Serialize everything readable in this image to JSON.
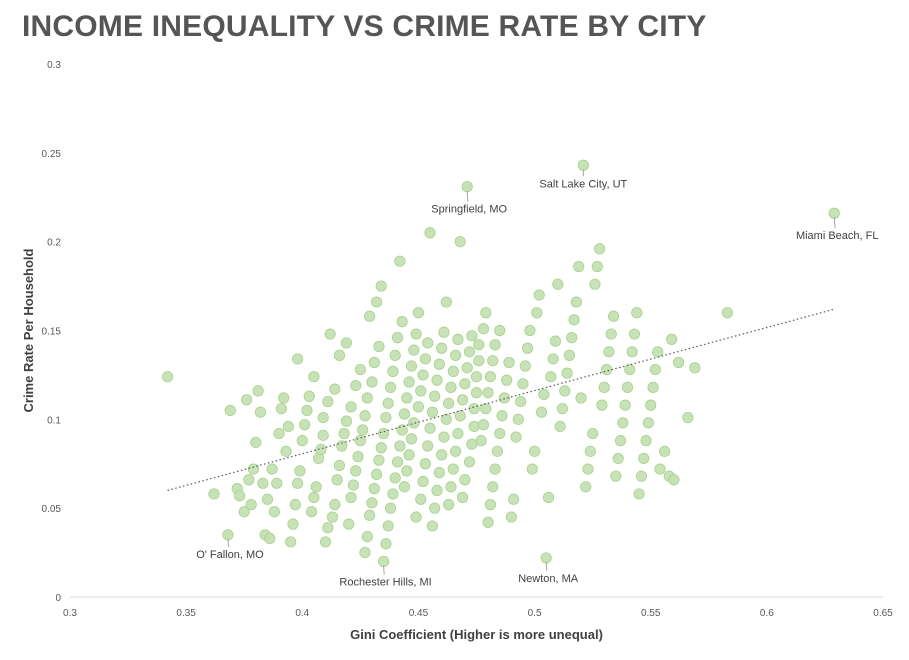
{
  "chart_data": {
    "type": "scatter",
    "title": "INCOME INEQUALITY VS CRIME RATE BY CITY",
    "xlabel": "Gini Coefficient  (Higher is more unequal)",
    "ylabel": "Crime Rate Per Household",
    "xlim": [
      0.3,
      0.65
    ],
    "ylim": [
      0,
      0.3
    ],
    "xticks": [
      "0.3",
      "0.35",
      "0.4",
      "0.45",
      "0.5",
      "0.55",
      "0.6",
      "0.65"
    ],
    "yticks": [
      "0",
      "0.05",
      "0.1",
      "0.15",
      "0.2",
      "0.25",
      "0.3"
    ],
    "grid": false,
    "legend": "none",
    "point_color": "#c5e0b3",
    "point_edge_color": "#a9d18e",
    "trendline": {
      "style": "dotted",
      "color": "#595959",
      "x": [
        0.342,
        0.629
      ],
      "y": [
        0.06,
        0.162
      ]
    },
    "annotations": [
      {
        "text": "Salt Lake City, UT",
        "x": 0.521,
        "y": 0.243
      },
      {
        "text": "Springfield, MO",
        "x": 0.471,
        "y": 0.231
      },
      {
        "text": "Miami Beach, FL",
        "x": 0.629,
        "y": 0.216
      },
      {
        "text": "O' Fallon, MO",
        "x": 0.368,
        "y": 0.035
      },
      {
        "text": "Rochester Hills, MI",
        "x": 0.435,
        "y": 0.02
      },
      {
        "text": "Newton, MA",
        "x": 0.505,
        "y": 0.022
      }
    ],
    "points": [
      [
        0.342,
        0.124
      ],
      [
        0.362,
        0.058
      ],
      [
        0.368,
        0.035
      ],
      [
        0.369,
        0.105
      ],
      [
        0.372,
        0.061
      ],
      [
        0.373,
        0.057
      ],
      [
        0.375,
        0.048
      ],
      [
        0.376,
        0.111
      ],
      [
        0.377,
        0.066
      ],
      [
        0.378,
        0.052
      ],
      [
        0.379,
        0.072
      ],
      [
        0.38,
        0.087
      ],
      [
        0.381,
        0.116
      ],
      [
        0.382,
        0.104
      ],
      [
        0.383,
        0.064
      ],
      [
        0.384,
        0.035
      ],
      [
        0.385,
        0.055
      ],
      [
        0.386,
        0.033
      ],
      [
        0.387,
        0.072
      ],
      [
        0.388,
        0.048
      ],
      [
        0.389,
        0.064
      ],
      [
        0.39,
        0.092
      ],
      [
        0.391,
        0.106
      ],
      [
        0.392,
        0.112
      ],
      [
        0.393,
        0.082
      ],
      [
        0.394,
        0.096
      ],
      [
        0.395,
        0.031
      ],
      [
        0.396,
        0.041
      ],
      [
        0.397,
        0.052
      ],
      [
        0.398,
        0.064
      ],
      [
        0.398,
        0.134
      ],
      [
        0.399,
        0.071
      ],
      [
        0.4,
        0.088
      ],
      [
        0.401,
        0.097
      ],
      [
        0.402,
        0.105
      ],
      [
        0.403,
        0.113
      ],
      [
        0.404,
        0.048
      ],
      [
        0.405,
        0.056
      ],
      [
        0.405,
        0.124
      ],
      [
        0.406,
        0.062
      ],
      [
        0.407,
        0.078
      ],
      [
        0.408,
        0.083
      ],
      [
        0.409,
        0.091
      ],
      [
        0.409,
        0.101
      ],
      [
        0.41,
        0.031
      ],
      [
        0.411,
        0.039
      ],
      [
        0.411,
        0.11
      ],
      [
        0.412,
        0.148
      ],
      [
        0.413,
        0.045
      ],
      [
        0.414,
        0.052
      ],
      [
        0.414,
        0.117
      ],
      [
        0.415,
        0.066
      ],
      [
        0.416,
        0.074
      ],
      [
        0.416,
        0.136
      ],
      [
        0.417,
        0.085
      ],
      [
        0.418,
        0.092
      ],
      [
        0.419,
        0.099
      ],
      [
        0.419,
        0.143
      ],
      [
        0.42,
        0.041
      ],
      [
        0.421,
        0.056
      ],
      [
        0.421,
        0.107
      ],
      [
        0.422,
        0.063
      ],
      [
        0.423,
        0.071
      ],
      [
        0.423,
        0.119
      ],
      [
        0.424,
        0.079
      ],
      [
        0.425,
        0.088
      ],
      [
        0.425,
        0.128
      ],
      [
        0.426,
        0.094
      ],
      [
        0.427,
        0.025
      ],
      [
        0.427,
        0.102
      ],
      [
        0.428,
        0.034
      ],
      [
        0.428,
        0.112
      ],
      [
        0.429,
        0.046
      ],
      [
        0.429,
        0.158
      ],
      [
        0.43,
        0.053
      ],
      [
        0.43,
        0.121
      ],
      [
        0.431,
        0.061
      ],
      [
        0.431,
        0.132
      ],
      [
        0.432,
        0.069
      ],
      [
        0.432,
        0.166
      ],
      [
        0.433,
        0.077
      ],
      [
        0.433,
        0.141
      ],
      [
        0.434,
        0.084
      ],
      [
        0.434,
        0.175
      ],
      [
        0.435,
        0.02
      ],
      [
        0.435,
        0.092
      ],
      [
        0.436,
        0.03
      ],
      [
        0.436,
        0.101
      ],
      [
        0.437,
        0.04
      ],
      [
        0.437,
        0.109
      ],
      [
        0.438,
        0.05
      ],
      [
        0.438,
        0.118
      ],
      [
        0.439,
        0.058
      ],
      [
        0.439,
        0.127
      ],
      [
        0.44,
        0.067
      ],
      [
        0.44,
        0.136
      ],
      [
        0.441,
        0.076
      ],
      [
        0.441,
        0.146
      ],
      [
        0.442,
        0.085
      ],
      [
        0.442,
        0.189
      ],
      [
        0.443,
        0.094
      ],
      [
        0.443,
        0.155
      ],
      [
        0.444,
        0.103
      ],
      [
        0.444,
        0.062
      ],
      [
        0.445,
        0.112
      ],
      [
        0.445,
        0.071
      ],
      [
        0.446,
        0.121
      ],
      [
        0.446,
        0.08
      ],
      [
        0.447,
        0.13
      ],
      [
        0.447,
        0.089
      ],
      [
        0.448,
        0.139
      ],
      [
        0.448,
        0.098
      ],
      [
        0.449,
        0.148
      ],
      [
        0.449,
        0.045
      ],
      [
        0.45,
        0.107
      ],
      [
        0.45,
        0.16
      ],
      [
        0.451,
        0.055
      ],
      [
        0.451,
        0.116
      ],
      [
        0.452,
        0.065
      ],
      [
        0.452,
        0.125
      ],
      [
        0.453,
        0.075
      ],
      [
        0.453,
        0.134
      ],
      [
        0.454,
        0.085
      ],
      [
        0.454,
        0.143
      ],
      [
        0.455,
        0.095
      ],
      [
        0.455,
        0.205
      ],
      [
        0.456,
        0.04
      ],
      [
        0.456,
        0.104
      ],
      [
        0.457,
        0.05
      ],
      [
        0.457,
        0.113
      ],
      [
        0.458,
        0.06
      ],
      [
        0.458,
        0.122
      ],
      [
        0.459,
        0.07
      ],
      [
        0.459,
        0.131
      ],
      [
        0.46,
        0.08
      ],
      [
        0.46,
        0.14
      ],
      [
        0.461,
        0.09
      ],
      [
        0.461,
        0.149
      ],
      [
        0.462,
        0.1
      ],
      [
        0.462,
        0.166
      ],
      [
        0.463,
        0.052
      ],
      [
        0.463,
        0.109
      ],
      [
        0.464,
        0.062
      ],
      [
        0.464,
        0.118
      ],
      [
        0.465,
        0.072
      ],
      [
        0.465,
        0.127
      ],
      [
        0.466,
        0.082
      ],
      [
        0.466,
        0.136
      ],
      [
        0.467,
        0.092
      ],
      [
        0.467,
        0.145
      ],
      [
        0.468,
        0.102
      ],
      [
        0.468,
        0.2
      ],
      [
        0.469,
        0.056
      ],
      [
        0.469,
        0.111
      ],
      [
        0.47,
        0.066
      ],
      [
        0.47,
        0.12
      ],
      [
        0.471,
        0.231
      ],
      [
        0.471,
        0.129
      ],
      [
        0.472,
        0.076
      ],
      [
        0.472,
        0.138
      ],
      [
        0.473,
        0.086
      ],
      [
        0.473,
        0.147
      ],
      [
        0.474,
        0.096
      ],
      [
        0.474,
        0.106
      ],
      [
        0.475,
        0.115
      ],
      [
        0.475,
        0.124
      ],
      [
        0.476,
        0.133
      ],
      [
        0.476,
        0.142
      ],
      [
        0.477,
        0.088
      ],
      [
        0.478,
        0.097
      ],
      [
        0.478,
        0.151
      ],
      [
        0.479,
        0.106
      ],
      [
        0.479,
        0.16
      ],
      [
        0.48,
        0.115
      ],
      [
        0.48,
        0.042
      ],
      [
        0.481,
        0.124
      ],
      [
        0.481,
        0.052
      ],
      [
        0.482,
        0.133
      ],
      [
        0.482,
        0.062
      ],
      [
        0.483,
        0.142
      ],
      [
        0.483,
        0.072
      ],
      [
        0.484,
        0.082
      ],
      [
        0.485,
        0.092
      ],
      [
        0.485,
        0.15
      ],
      [
        0.486,
        0.102
      ],
      [
        0.487,
        0.112
      ],
      [
        0.488,
        0.122
      ],
      [
        0.489,
        0.132
      ],
      [
        0.49,
        0.045
      ],
      [
        0.491,
        0.055
      ],
      [
        0.492,
        0.09
      ],
      [
        0.493,
        0.1
      ],
      [
        0.494,
        0.11
      ],
      [
        0.495,
        0.12
      ],
      [
        0.496,
        0.13
      ],
      [
        0.497,
        0.14
      ],
      [
        0.498,
        0.15
      ],
      [
        0.499,
        0.072
      ],
      [
        0.5,
        0.082
      ],
      [
        0.501,
        0.16
      ],
      [
        0.502,
        0.17
      ],
      [
        0.503,
        0.104
      ],
      [
        0.504,
        0.114
      ],
      [
        0.505,
        0.022
      ],
      [
        0.506,
        0.056
      ],
      [
        0.507,
        0.124
      ],
      [
        0.508,
        0.134
      ],
      [
        0.509,
        0.144
      ],
      [
        0.51,
        0.176
      ],
      [
        0.511,
        0.096
      ],
      [
        0.512,
        0.106
      ],
      [
        0.513,
        0.116
      ],
      [
        0.514,
        0.126
      ],
      [
        0.515,
        0.136
      ],
      [
        0.516,
        0.146
      ],
      [
        0.517,
        0.156
      ],
      [
        0.518,
        0.166
      ],
      [
        0.519,
        0.186
      ],
      [
        0.52,
        0.112
      ],
      [
        0.521,
        0.243
      ],
      [
        0.522,
        0.062
      ],
      [
        0.523,
        0.072
      ],
      [
        0.524,
        0.082
      ],
      [
        0.525,
        0.092
      ],
      [
        0.526,
        0.176
      ],
      [
        0.527,
        0.186
      ],
      [
        0.528,
        0.196
      ],
      [
        0.529,
        0.108
      ],
      [
        0.53,
        0.118
      ],
      [
        0.531,
        0.128
      ],
      [
        0.532,
        0.138
      ],
      [
        0.533,
        0.148
      ],
      [
        0.534,
        0.158
      ],
      [
        0.535,
        0.068
      ],
      [
        0.536,
        0.078
      ],
      [
        0.537,
        0.088
      ],
      [
        0.538,
        0.098
      ],
      [
        0.539,
        0.108
      ],
      [
        0.54,
        0.118
      ],
      [
        0.541,
        0.128
      ],
      [
        0.542,
        0.138
      ],
      [
        0.543,
        0.148
      ],
      [
        0.544,
        0.16
      ],
      [
        0.545,
        0.058
      ],
      [
        0.546,
        0.068
      ],
      [
        0.547,
        0.078
      ],
      [
        0.548,
        0.088
      ],
      [
        0.549,
        0.098
      ],
      [
        0.55,
        0.108
      ],
      [
        0.551,
        0.118
      ],
      [
        0.552,
        0.128
      ],
      [
        0.553,
        0.138
      ],
      [
        0.554,
        0.072
      ],
      [
        0.556,
        0.082
      ],
      [
        0.558,
        0.068
      ],
      [
        0.559,
        0.145
      ],
      [
        0.56,
        0.066
      ],
      [
        0.562,
        0.132
      ],
      [
        0.566,
        0.101
      ],
      [
        0.569,
        0.129
      ],
      [
        0.583,
        0.16
      ],
      [
        0.629,
        0.216
      ]
    ]
  }
}
